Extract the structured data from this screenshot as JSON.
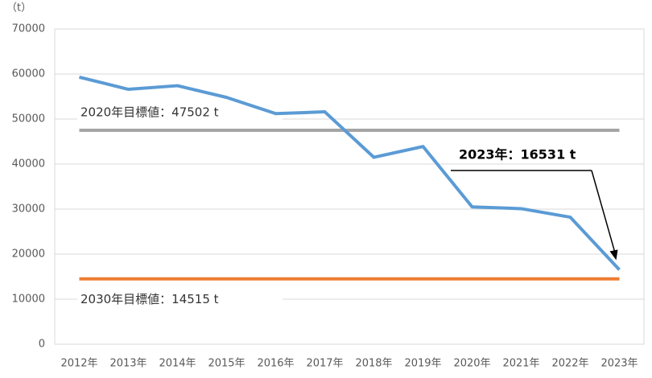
{
  "chart_data": {
    "type": "line",
    "y_unit_label": "（t）",
    "categories": [
      "2012年",
      "2013年",
      "2014年",
      "2015年",
      "2016年",
      "2017年",
      "2018年",
      "2019年",
      "2020年",
      "2021年",
      "2022年",
      "2023年"
    ],
    "series": [
      {
        "color": "#5b9bd5",
        "values": [
          59300,
          56600,
          57400,
          54800,
          51200,
          51600,
          41500,
          43900,
          30500,
          30100,
          28200,
          16531
        ]
      }
    ],
    "reference_lines": [
      {
        "value": 47502,
        "color": "#a5a5a5",
        "label": "2020年目標値：47502 t"
      },
      {
        "value": 14515,
        "color": "#ed7d31",
        "label": "2030年目標値：14515 t"
      }
    ],
    "annotation": "2023年：16531 t",
    "ylim": [
      0,
      70000
    ],
    "yticks": [
      0,
      10000,
      20000,
      30000,
      40000,
      50000,
      60000,
      70000
    ],
    "grid": true
  }
}
